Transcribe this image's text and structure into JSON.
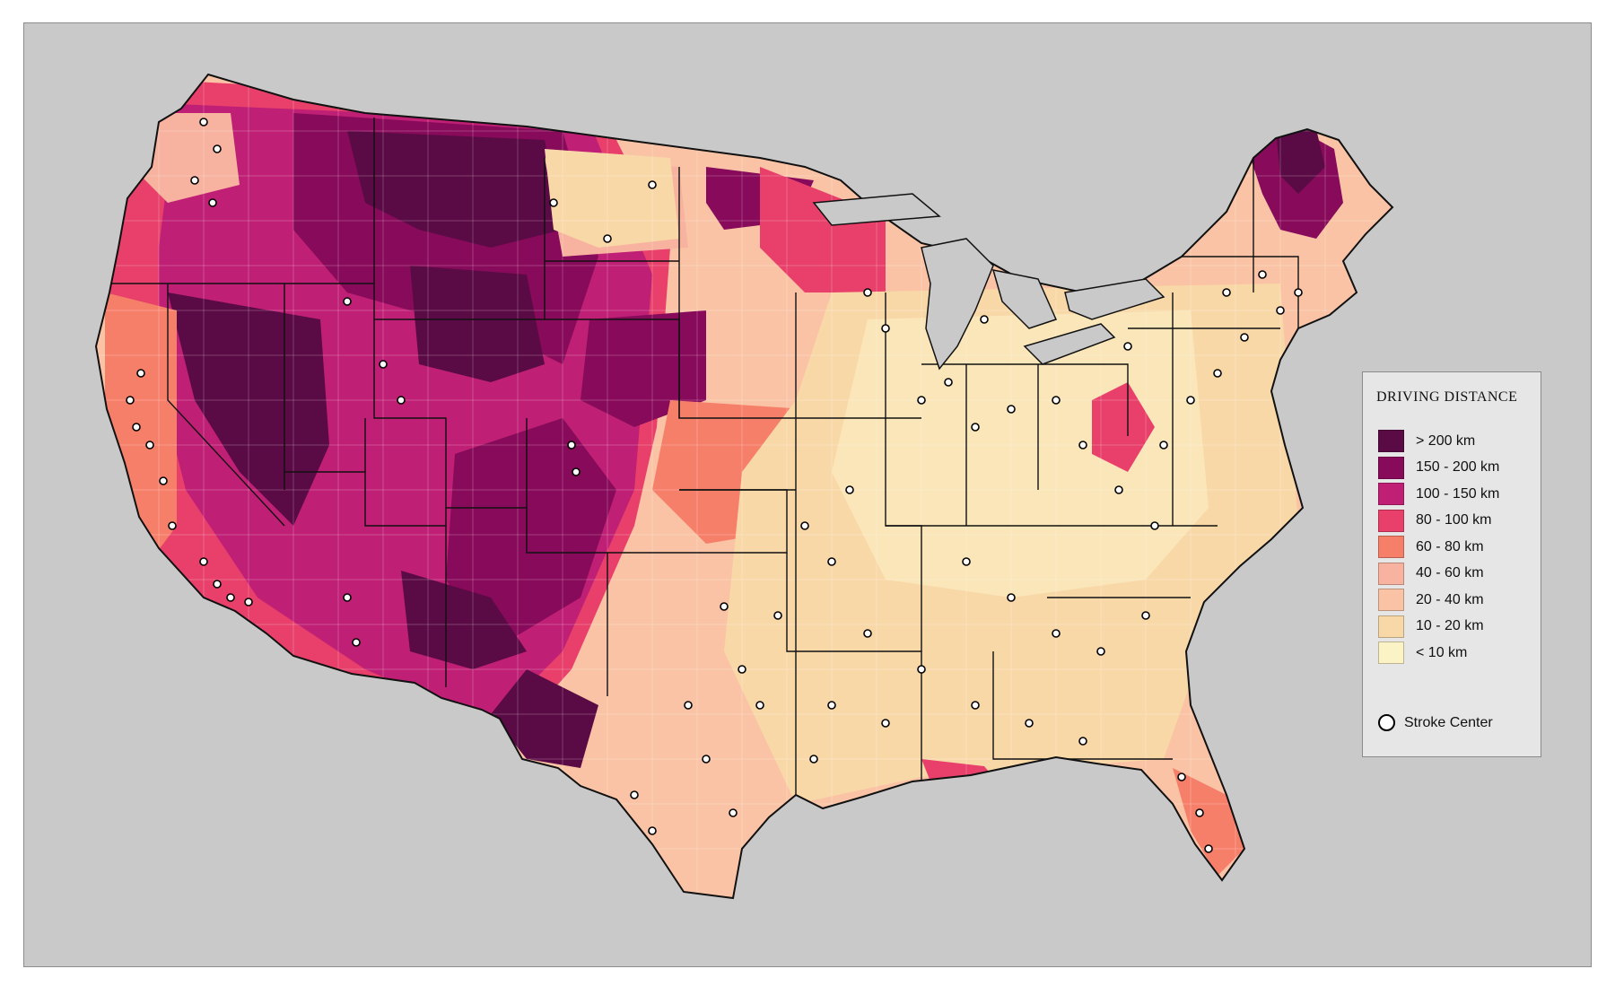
{
  "legend": {
    "title": "DRIVING DISTANCE",
    "items": [
      {
        "label": "> 200 km",
        "color": "#5a0a45"
      },
      {
        "label": "150 - 200 km",
        "color": "#880a5a"
      },
      {
        "label": "100 - 150 km",
        "color": "#bf1f74"
      },
      {
        "label": "80 - 100 km",
        "color": "#e8406b"
      },
      {
        "label": "60 - 80 km",
        "color": "#f67f6a"
      },
      {
        "label": "40 - 60 km",
        "color": "#f7b39f"
      },
      {
        "label": "20 - 40 km",
        "color": "#fac3a5"
      },
      {
        "label": "10 - 20 km",
        "color": "#f9d8a8"
      },
      {
        "label": "< 10 km",
        "color": "#fbf2c6"
      }
    ],
    "marker_label": "Stroke Center"
  },
  "colors": {
    "background": "#c9c9c9",
    "boundary": "#111111",
    "water": "#c9c9c9"
  }
}
